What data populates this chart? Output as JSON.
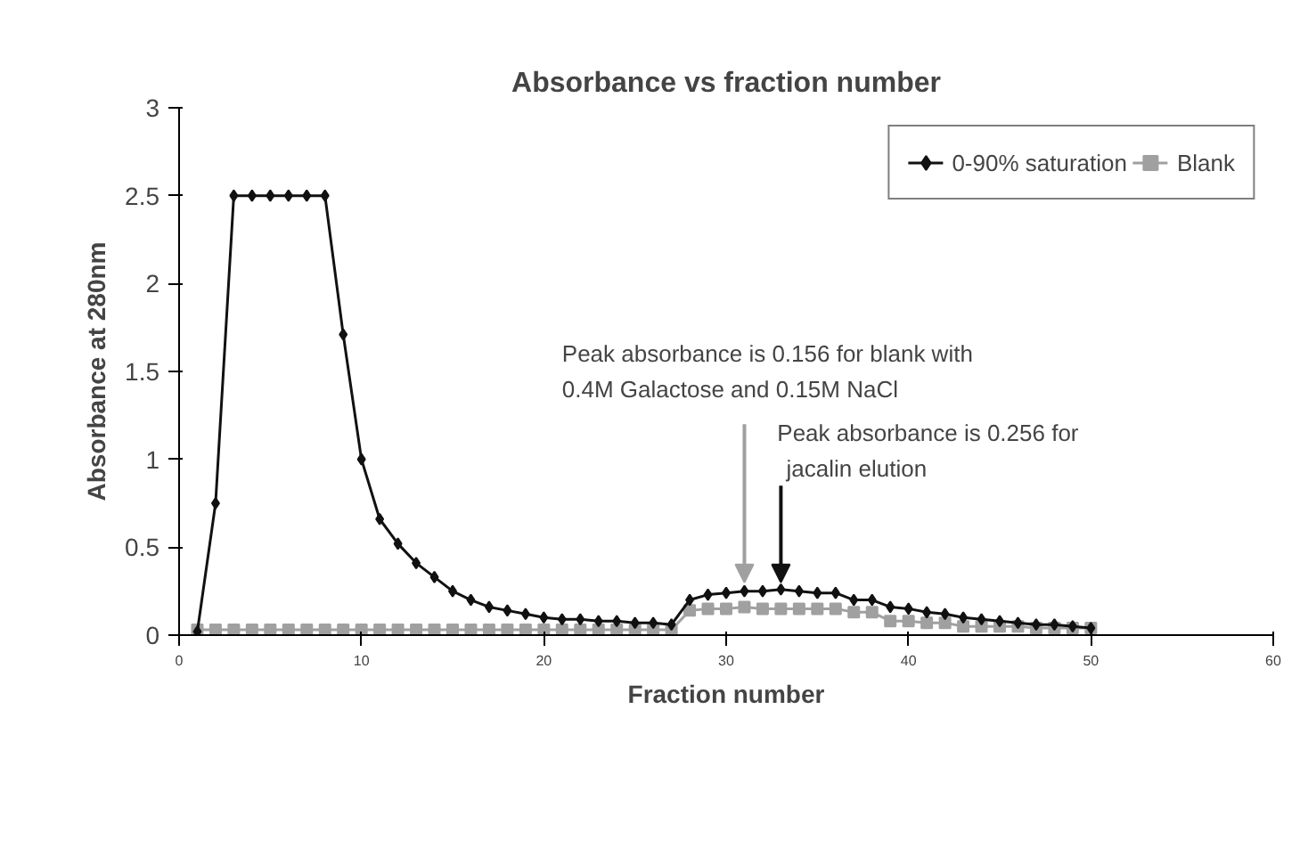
{
  "chart_data": {
    "type": "line",
    "title": "Absorbance vs fraction number",
    "xlabel": "Fraction number",
    "ylabel": "Absorbance at 280nm",
    "x": [
      1,
      2,
      3,
      4,
      5,
      6,
      7,
      8,
      9,
      10,
      11,
      12,
      13,
      14,
      15,
      16,
      17,
      18,
      19,
      20,
      21,
      22,
      23,
      24,
      25,
      26,
      27,
      28,
      29,
      30,
      31,
      32,
      33,
      34,
      35,
      36,
      37,
      38,
      39,
      40,
      41,
      42,
      43,
      44,
      45,
      46,
      47,
      48,
      49,
      50
    ],
    "series": [
      {
        "name": "0-90% saturation",
        "color": "#111111",
        "marker": "diamond",
        "values": [
          0.02,
          0.75,
          2.5,
          2.5,
          2.5,
          2.5,
          2.5,
          2.5,
          1.71,
          1.0,
          0.66,
          0.52,
          0.41,
          0.33,
          0.25,
          0.2,
          0.16,
          0.14,
          0.12,
          0.1,
          0.09,
          0.09,
          0.08,
          0.08,
          0.07,
          0.07,
          0.06,
          0.2,
          0.23,
          0.24,
          0.25,
          0.25,
          0.26,
          0.25,
          0.24,
          0.24,
          0.2,
          0.2,
          0.16,
          0.15,
          0.13,
          0.12,
          0.1,
          0.09,
          0.08,
          0.07,
          0.06,
          0.06,
          0.05,
          0.04
        ]
      },
      {
        "name": "Blank",
        "color": "#a0a0a0",
        "marker": "square",
        "values": [
          0.03,
          0.03,
          0.03,
          0.03,
          0.03,
          0.03,
          0.03,
          0.03,
          0.03,
          0.03,
          0.03,
          0.03,
          0.03,
          0.03,
          0.03,
          0.03,
          0.03,
          0.03,
          0.03,
          0.03,
          0.03,
          0.03,
          0.03,
          0.03,
          0.03,
          0.03,
          0.03,
          0.14,
          0.15,
          0.15,
          0.16,
          0.15,
          0.15,
          0.15,
          0.15,
          0.15,
          0.13,
          0.13,
          0.08,
          0.08,
          0.07,
          0.07,
          0.05,
          0.05,
          0.05,
          0.05,
          0.04,
          0.04,
          0.04,
          0.04
        ]
      }
    ],
    "annotations": [
      {
        "text": "Peak absorbance is 0.156 for blank with\n0.4M Galactose and 0.15M NaCl",
        "x": 31,
        "y": 0.3
      },
      {
        "text": "Peak absorbance is 0.256 for\njacalin elution",
        "x": 33,
        "y": 0.3
      }
    ],
    "xlim": [
      0,
      60
    ],
    "xticks": [
      0,
      10,
      20,
      30,
      40,
      50,
      60
    ],
    "ylim": [
      0,
      3
    ],
    "yticks": [
      0,
      0.5,
      1,
      1.5,
      2,
      2.5,
      3
    ],
    "grid": false,
    "legend": "top right",
    "line_style": "solid"
  }
}
